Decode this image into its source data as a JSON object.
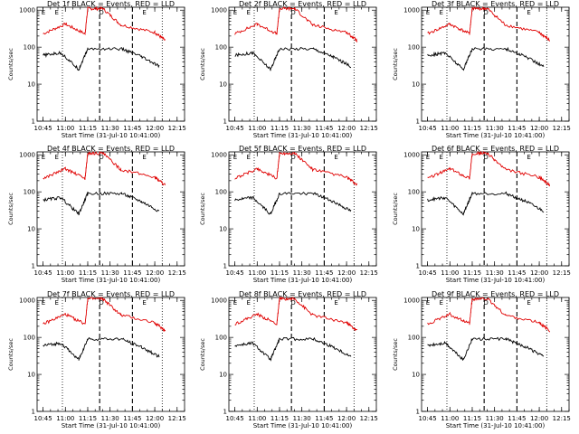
{
  "chart_data": [
    {
      "type": "line",
      "title": "Det 1f BLACK = Events, RED = LLD",
      "ylabel": "Counts/sec",
      "xlabel": "Start Time (31-Jul-10 10:41:00)",
      "xticks": [
        "10:45",
        "11:00",
        "11:15",
        "11:30",
        "11:45",
        "12:00",
        "12:15"
      ],
      "yticks": [
        "1",
        "10",
        "100",
        "1000"
      ],
      "ylim": [
        1,
        1200
      ],
      "xlim": [
        "10:41",
        "12:20"
      ],
      "scale": "log",
      "markers": [
        "E",
        "E",
        "D",
        "E"
      ],
      "series": [
        {
          "color": "#e00000",
          "values": [
            [
              10.75,
              230
            ],
            [
              11.0,
              420
            ],
            [
              11.22,
              230
            ],
            [
              11.25,
              1100
            ],
            [
              11.42,
              1100
            ],
            [
              11.62,
              400
            ],
            [
              12.0,
              250
            ],
            [
              12.12,
              150
            ]
          ]
        },
        {
          "color": "#000",
          "values": [
            [
              10.75,
              60
            ],
            [
              10.95,
              70
            ],
            [
              11.15,
              25
            ],
            [
              11.25,
              90
            ],
            [
              11.63,
              90
            ],
            [
              11.85,
              55
            ],
            [
              12.05,
              30
            ]
          ]
        }
      ],
      "vlines_dotted": [
        "10:58",
        "12:05"
      ],
      "vlines_dashed": [
        "11:23",
        "11:45"
      ]
    },
    {
      "type": "line",
      "title": "Det 2f BLACK = Events, RED = LLD",
      "ylabel": "Counts/sec",
      "xlabel": "Start Time (31-Jul-10 10:41:00)",
      "xticks": [
        "10:45",
        "11:00",
        "11:15",
        "11:30",
        "11:45",
        "12:00",
        "12:15"
      ],
      "yticks": [
        "1",
        "10",
        "100",
        "1000"
      ],
      "ylim": [
        1,
        1200
      ],
      "xlim": [
        "10:41",
        "12:20"
      ],
      "scale": "log",
      "markers": [
        "E",
        "E",
        "D",
        "E"
      ],
      "series": [
        {
          "color": "#e00000",
          "values": [
            [
              10.75,
              230
            ],
            [
              11.0,
              420
            ],
            [
              11.22,
              230
            ],
            [
              11.25,
              1100
            ],
            [
              11.42,
              1100
            ],
            [
              11.62,
              400
            ],
            [
              12.0,
              250
            ],
            [
              12.12,
              150
            ]
          ]
        },
        {
          "color": "#000",
          "values": [
            [
              10.75,
              60
            ],
            [
              10.95,
              70
            ],
            [
              11.15,
              25
            ],
            [
              11.25,
              90
            ],
            [
              11.63,
              90
            ],
            [
              11.85,
              55
            ],
            [
              12.05,
              30
            ]
          ]
        }
      ],
      "vlines_dotted": [
        "10:58",
        "12:05"
      ],
      "vlines_dashed": [
        "11:23",
        "11:45"
      ]
    },
    {
      "type": "line",
      "title": "Det 3f BLACK = Events, RED = LLD",
      "ylabel": "Counts/sec",
      "xlabel": "Start Time (31-Jul-10 10:41:00)",
      "xticks": [
        "10:45",
        "11:00",
        "11:15",
        "11:30",
        "11:45",
        "12:00",
        "12:15"
      ],
      "yticks": [
        "1",
        "10",
        "100",
        "1000"
      ],
      "ylim": [
        1,
        1200
      ],
      "xlim": [
        "10:41",
        "12:20"
      ],
      "scale": "log",
      "markers": [
        "E",
        "E",
        "D",
        "E"
      ],
      "series": [
        {
          "color": "#e00000",
          "values": [
            [
              10.75,
              230
            ],
            [
              11.0,
              420
            ],
            [
              11.22,
              230
            ],
            [
              11.25,
              1100
            ],
            [
              11.42,
              1100
            ],
            [
              11.62,
              400
            ],
            [
              12.0,
              250
            ],
            [
              12.12,
              150
            ]
          ]
        },
        {
          "color": "#000",
          "values": [
            [
              10.75,
              60
            ],
            [
              10.95,
              70
            ],
            [
              11.15,
              25
            ],
            [
              11.25,
              90
            ],
            [
              11.63,
              90
            ],
            [
              11.85,
              55
            ],
            [
              12.05,
              30
            ]
          ]
        }
      ],
      "vlines_dotted": [
        "10:58",
        "12:05"
      ],
      "vlines_dashed": [
        "11:23",
        "11:45"
      ]
    },
    {
      "type": "line",
      "title": "Det 4f BLACK = Events, RED = LLD",
      "ylabel": "Counts/sec",
      "xlabel": "Start Time (31-Jul-10 10:41:00)",
      "xticks": [
        "10:45",
        "11:00",
        "11:15",
        "11:30",
        "11:45",
        "12:00",
        "12:15"
      ],
      "yticks": [
        "1",
        "10",
        "100",
        "1000"
      ],
      "ylim": [
        1,
        1200
      ],
      "xlim": [
        "10:41",
        "12:20"
      ],
      "scale": "log",
      "markers": [
        "E",
        "E",
        "D",
        "E"
      ],
      "series": [
        {
          "color": "#e00000",
          "values": [
            [
              10.75,
              230
            ],
            [
              11.0,
              420
            ],
            [
              11.22,
              230
            ],
            [
              11.25,
              1100
            ],
            [
              11.42,
              1100
            ],
            [
              11.62,
              400
            ],
            [
              12.0,
              250
            ],
            [
              12.12,
              150
            ]
          ]
        },
        {
          "color": "#000",
          "values": [
            [
              10.75,
              60
            ],
            [
              10.95,
              70
            ],
            [
              11.15,
              25
            ],
            [
              11.25,
              90
            ],
            [
              11.63,
              90
            ],
            [
              11.85,
              55
            ],
            [
              12.05,
              30
            ]
          ]
        }
      ],
      "vlines_dotted": [
        "10:58",
        "12:05"
      ],
      "vlines_dashed": [
        "11:23",
        "11:45"
      ]
    },
    {
      "type": "line",
      "title": "Det 5f BLACK = Events, RED = LLD",
      "ylabel": "Counts/sec",
      "xlabel": "Start Time (31-Jul-10 10:41:00)",
      "xticks": [
        "10:45",
        "11:00",
        "11:15",
        "11:30",
        "11:45",
        "12:00",
        "12:15"
      ],
      "yticks": [
        "1",
        "10",
        "100",
        "1000"
      ],
      "ylim": [
        1,
        1200
      ],
      "xlim": [
        "10:41",
        "12:20"
      ],
      "scale": "log",
      "markers": [
        "E",
        "E",
        "D",
        "E"
      ],
      "series": [
        {
          "color": "#e00000",
          "values": [
            [
              10.75,
              230
            ],
            [
              11.0,
              420
            ],
            [
              11.22,
              230
            ],
            [
              11.25,
              1100
            ],
            [
              11.42,
              1100
            ],
            [
              11.62,
              400
            ],
            [
              12.0,
              250
            ],
            [
              12.12,
              150
            ]
          ]
        },
        {
          "color": "#000",
          "values": [
            [
              10.75,
              60
            ],
            [
              10.95,
              70
            ],
            [
              11.15,
              25
            ],
            [
              11.25,
              90
            ],
            [
              11.63,
              90
            ],
            [
              11.85,
              55
            ],
            [
              12.05,
              30
            ]
          ]
        }
      ],
      "vlines_dotted": [
        "10:58",
        "12:05"
      ],
      "vlines_dashed": [
        "11:23",
        "11:45"
      ]
    },
    {
      "type": "line",
      "title": "Det 6f BLACK = Events, RED = LLD",
      "ylabel": "Counts/sec",
      "xlabel": "Start Time (31-Jul-10 10:41:00)",
      "xticks": [
        "10:45",
        "11:00",
        "11:15",
        "11:30",
        "11:45",
        "12:00",
        "12:15"
      ],
      "yticks": [
        "1",
        "10",
        "100",
        "1000"
      ],
      "ylim": [
        1,
        1200
      ],
      "xlim": [
        "10:41",
        "12:20"
      ],
      "scale": "log",
      "markers": [
        "E",
        "E",
        "D",
        "E"
      ],
      "series": [
        {
          "color": "#e00000",
          "values": [
            [
              10.75,
              230
            ],
            [
              11.0,
              420
            ],
            [
              11.22,
              230
            ],
            [
              11.25,
              1100
            ],
            [
              11.42,
              1100
            ],
            [
              11.62,
              400
            ],
            [
              12.0,
              250
            ],
            [
              12.12,
              150
            ]
          ]
        },
        {
          "color": "#000",
          "values": [
            [
              10.75,
              60
            ],
            [
              10.95,
              70
            ],
            [
              11.15,
              25
            ],
            [
              11.25,
              90
            ],
            [
              11.63,
              90
            ],
            [
              11.85,
              55
            ],
            [
              12.05,
              30
            ]
          ]
        }
      ],
      "vlines_dotted": [
        "10:58",
        "12:05"
      ],
      "vlines_dashed": [
        "11:23",
        "11:45"
      ]
    },
    {
      "type": "line",
      "title": "Det 7f BLACK = Events, RED = LLD",
      "ylabel": "Counts/sec",
      "xlabel": "Start Time (31-Jul-10 10:41:00)",
      "xticks": [
        "10:45",
        "11:00",
        "11:15",
        "11:30",
        "11:45",
        "12:00",
        "12:15"
      ],
      "yticks": [
        "1",
        "10",
        "100",
        "1000"
      ],
      "ylim": [
        1,
        1200
      ],
      "xlim": [
        "10:41",
        "12:20"
      ],
      "scale": "log",
      "markers": [
        "E",
        "E",
        "D",
        "E"
      ],
      "series": [
        {
          "color": "#e00000",
          "values": [
            [
              10.75,
              230
            ],
            [
              11.0,
              420
            ],
            [
              11.22,
              230
            ],
            [
              11.25,
              1100
            ],
            [
              11.42,
              1100
            ],
            [
              11.62,
              400
            ],
            [
              12.0,
              250
            ],
            [
              12.12,
              150
            ]
          ]
        },
        {
          "color": "#000",
          "values": [
            [
              10.75,
              60
            ],
            [
              10.95,
              70
            ],
            [
              11.15,
              25
            ],
            [
              11.25,
              90
            ],
            [
              11.63,
              90
            ],
            [
              11.85,
              55
            ],
            [
              12.05,
              30
            ]
          ]
        }
      ],
      "vlines_dotted": [
        "10:58",
        "12:05"
      ],
      "vlines_dashed": [
        "11:23",
        "11:45"
      ]
    },
    {
      "type": "line",
      "title": "Det 8f BLACK = Events, RED = LLD",
      "ylabel": "Counts/sec",
      "xlabel": "Start Time (31-Jul-10 10:41:00)",
      "xticks": [
        "10:45",
        "11:00",
        "11:15",
        "11:30",
        "11:45",
        "12:00",
        "12:15"
      ],
      "yticks": [
        "1",
        "10",
        "100",
        "1000"
      ],
      "ylim": [
        1,
        1200
      ],
      "xlim": [
        "10:41",
        "12:20"
      ],
      "scale": "log",
      "markers": [
        "E",
        "E",
        "D",
        "E"
      ],
      "series": [
        {
          "color": "#e00000",
          "values": [
            [
              10.75,
              230
            ],
            [
              11.0,
              420
            ],
            [
              11.22,
              230
            ],
            [
              11.25,
              1100
            ],
            [
              11.42,
              1100
            ],
            [
              11.62,
              400
            ],
            [
              12.0,
              250
            ],
            [
              12.12,
              150
            ]
          ]
        },
        {
          "color": "#000",
          "values": [
            [
              10.75,
              60
            ],
            [
              10.95,
              70
            ],
            [
              11.15,
              25
            ],
            [
              11.25,
              90
            ],
            [
              11.63,
              90
            ],
            [
              11.85,
              55
            ],
            [
              12.05,
              30
            ]
          ]
        }
      ],
      "vlines_dotted": [
        "10:58",
        "12:05"
      ],
      "vlines_dashed": [
        "11:23",
        "11:45"
      ]
    },
    {
      "type": "line",
      "title": "Det 9f BLACK = Events, RED = LLD",
      "ylabel": "Counts/sec",
      "xlabel": "Start Time (31-Jul-10 10:41:00)",
      "xticks": [
        "10:45",
        "11:00",
        "11:15",
        "11:30",
        "11:45",
        "12:00",
        "12:15"
      ],
      "yticks": [
        "1",
        "10",
        "100",
        "1000"
      ],
      "ylim": [
        1,
        1200
      ],
      "xlim": [
        "10:41",
        "12:20"
      ],
      "scale": "log",
      "markers": [
        "E",
        "E",
        "D",
        "E"
      ],
      "series": [
        {
          "color": "#e00000",
          "values": [
            [
              10.75,
              230
            ],
            [
              11.0,
              420
            ],
            [
              11.22,
              230
            ],
            [
              11.25,
              1100
            ],
            [
              11.42,
              1100
            ],
            [
              11.62,
              400
            ],
            [
              12.0,
              250
            ],
            [
              12.12,
              150
            ]
          ]
        },
        {
          "color": "#000",
          "values": [
            [
              10.75,
              60
            ],
            [
              10.95,
              70
            ],
            [
              11.15,
              25
            ],
            [
              11.25,
              90
            ],
            [
              11.63,
              90
            ],
            [
              11.85,
              55
            ],
            [
              12.05,
              30
            ]
          ]
        }
      ],
      "vlines_dotted": [
        "10:58",
        "12:05"
      ],
      "vlines_dashed": [
        "11:23",
        "11:45"
      ]
    }
  ]
}
